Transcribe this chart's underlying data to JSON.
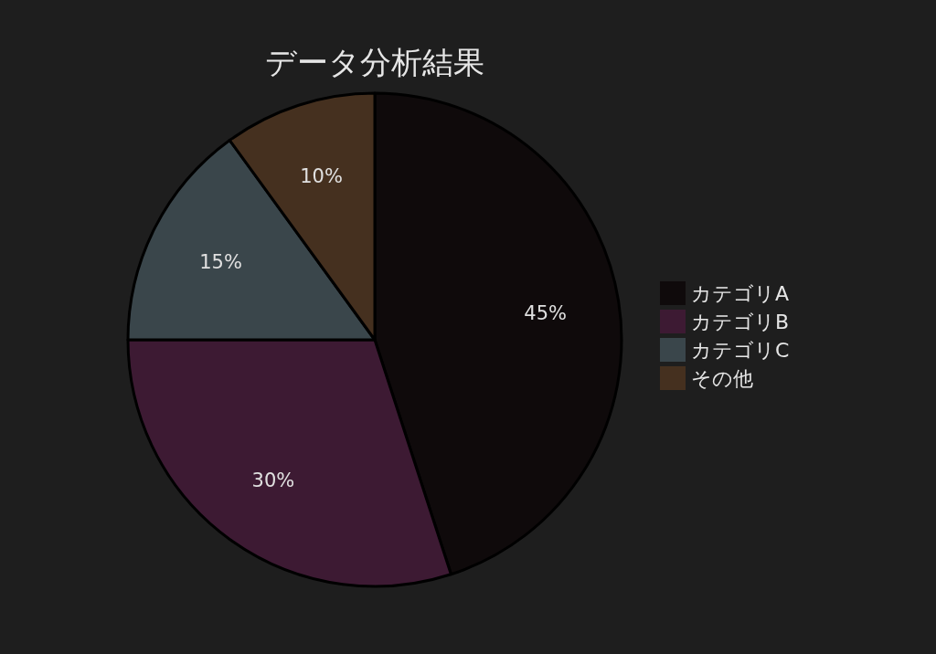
{
  "chart_data": {
    "type": "pie",
    "title": "データ分析結果",
    "categories": [
      "カテゴリA",
      "カテゴリB",
      "カテゴリC",
      "その他"
    ],
    "values": [
      45,
      30,
      15,
      10
    ],
    "colors": [
      "#0f0a0b",
      "#3d1a33",
      "#3a464b",
      "#45301f"
    ],
    "value_labels": [
      "45%",
      "30%",
      "15%",
      "10%"
    ],
    "legend": "right"
  }
}
